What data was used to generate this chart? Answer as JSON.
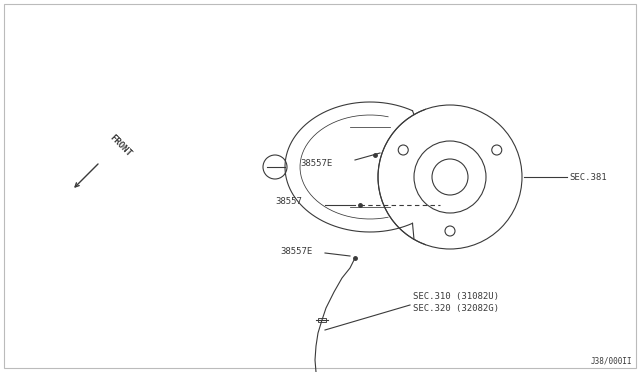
{
  "background_color": "#ffffff",
  "border_color": "#bbbbbb",
  "diagram_id": "J38/000II",
  "labels": {
    "SEC310": "SEC.310 (31082U)",
    "SEC320": "SEC.320 (32082G)",
    "SEC381": "SEC.381",
    "part38557E_top": "38557E",
    "part38557": "38557",
    "part38557E_bot": "38557E"
  },
  "line_color": "#3a3a3a",
  "label_color": "#3a3a3a",
  "font_size": 6.5
}
